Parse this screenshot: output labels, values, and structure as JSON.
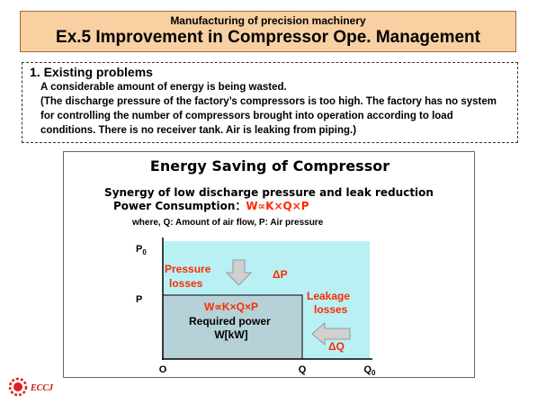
{
  "header": {
    "subtitle": "Manufacturing  of precision machinery",
    "title": "Ex.5  Improvement in Compressor Ope. Management"
  },
  "problems": {
    "heading": "1. Existing problems",
    "summary": "A considerable amount of energy is being wasted.",
    "details": "(The discharge pressure of the factory’s compressors is too high. The factory has no system for controlling the number of compressors brought into operation according to load conditions. There is no receiver tank. Air is leaking from piping.)"
  },
  "diagram": {
    "title": "Energy Saving of Compressor",
    "synergy": "Synergy of low discharge pressure and leak reduction",
    "power_label": "Power Consumption：",
    "power_formula": "W∝K×Q×P",
    "where": "where, Q: Amount of air flow, P: Air pressure",
    "y_p0": "P",
    "y_p0_sub": "0",
    "y_p": "P",
    "x_o": "O",
    "x_q": "Q",
    "x_q0": "Q",
    "x_q0_sub": "0",
    "pressure_losses_1": "Pressure",
    "pressure_losses_2": "losses",
    "delta_p": "ΔP",
    "leakage_1": "Leakage",
    "leakage_2": "losses",
    "delta_q": "ΔQ",
    "inner_formula": "W∝K×Q×P",
    "required_1": "Required power",
    "required_2": "W[kW]",
    "colors": {
      "outer_fill": "#b8f0f4",
      "inner_fill": "#b6d2d8",
      "red": "#ff2a00",
      "arrow": "#d0d0d0"
    }
  },
  "logo": {
    "text": "ECCJ",
    "icon": "eccj-logo-icon"
  }
}
